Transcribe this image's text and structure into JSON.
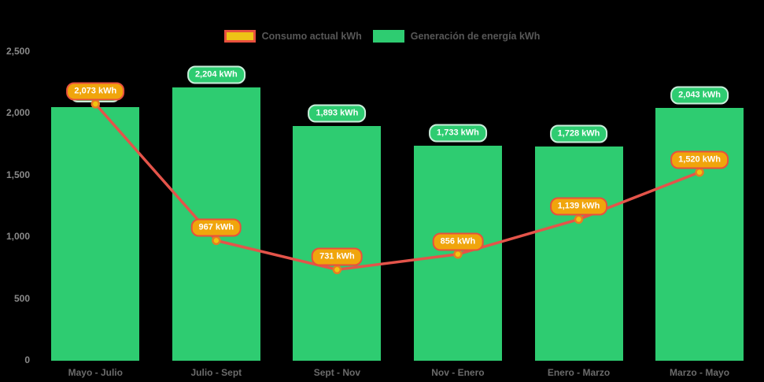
{
  "chart_data": {
    "type": "combo",
    "title": "",
    "background": "#000000",
    "categories": [
      "Mayo - Julio",
      "Julio - Sept",
      "Sept - Nov",
      "Nov - Enero",
      "Enero - Marzo",
      "Marzo - Mayo"
    ],
    "y_axis": {
      "ticks": [
        "0",
        "500",
        "1,000",
        "1,500",
        "2,000",
        "2,500"
      ],
      "tick_values": [
        0,
        500,
        1000,
        1500,
        2000,
        2500
      ],
      "min": 0,
      "max": 2500,
      "grid": false
    },
    "series": [
      {
        "name": "Generación de energía kWh",
        "type": "bar",
        "color": "#2ECC71",
        "values": [
          2050,
          2204,
          1893,
          1733,
          1728,
          2043
        ],
        "labels": [
          "",
          "2,204 kWh",
          "1,893 kWh",
          "1,733 kWh",
          "1,728 kWh",
          "2,043 kWh"
        ],
        "first_label_hidden_behind_line_label": true,
        "label_style": {
          "fill": "#2ECC71",
          "border": "#C9EFDB",
          "text": "#FFFFFF"
        }
      },
      {
        "name": "Consumo actual kWh",
        "type": "line",
        "color": "#E4544A",
        "marker": {
          "fill": "#F1C40F",
          "ring": "#E67E22"
        },
        "values": [
          2073,
          967,
          731,
          856,
          1139,
          1520
        ],
        "labels": [
          "2,073 kWh",
          "967 kWh",
          "731 kWh",
          "856 kWh",
          "1,139 kWh",
          "1,520 kWh"
        ],
        "label_style": {
          "fill": "#F0A50C",
          "border": "#E8503E",
          "text": "#FFFFFF"
        }
      }
    ],
    "legend": {
      "position": "top-center",
      "items": [
        {
          "label": "Consumo actual kWh",
          "swatch_fill": "#EEC216",
          "swatch_border": "#E8503E"
        },
        {
          "label": "Generación de energía kWh",
          "swatch_fill": "#2ECC71",
          "swatch_border": ""
        }
      ]
    }
  }
}
